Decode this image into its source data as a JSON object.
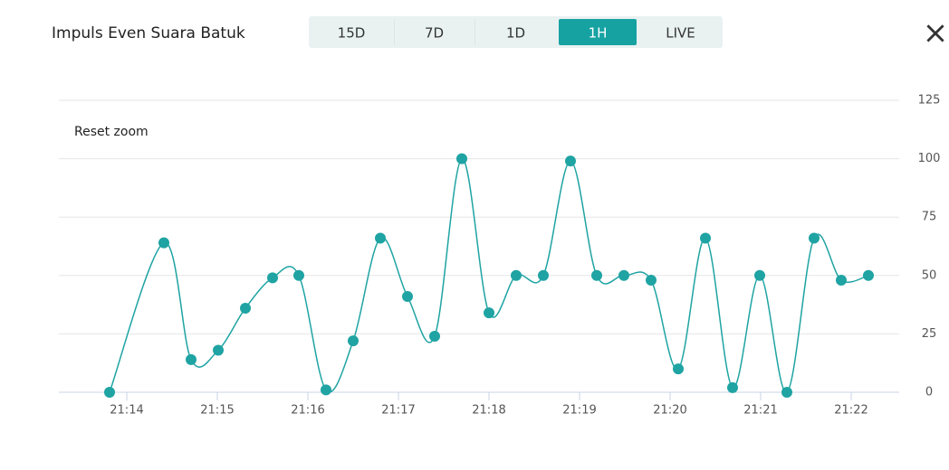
{
  "header": {
    "title": "Impuls Even Suara Batuk",
    "close": "×"
  },
  "tabs": {
    "items": [
      "15D",
      "7D",
      "1D",
      "1H",
      "LIVE"
    ],
    "active": 3
  },
  "reset_zoom": "Reset zoom",
  "chart_data": {
    "type": "line",
    "x": [
      13.81,
      14.41,
      14.71,
      15.01,
      15.31,
      15.61,
      15.9,
      16.2,
      16.5,
      16.8,
      17.1,
      17.4,
      17.7,
      18.0,
      18.3,
      18.6,
      18.9,
      19.19,
      19.49,
      19.79,
      20.09,
      20.39,
      20.69,
      20.99,
      21.29,
      21.59,
      21.89,
      22.19
    ],
    "series": [
      {
        "color": "#1fa3a3",
        "values": [
          0,
          64,
          14,
          18,
          36,
          49,
          50,
          1,
          22,
          66,
          41,
          24,
          100,
          34,
          50,
          50,
          99,
          50,
          50,
          48,
          10,
          66,
          2,
          50,
          0,
          66,
          48,
          50
        ]
      }
    ],
    "xlim": [
      13.25,
      22.53
    ],
    "xticks": [
      {
        "value": 14,
        "label": "21:14"
      },
      {
        "value": 15,
        "label": "21:15"
      },
      {
        "value": 16,
        "label": "21:16"
      },
      {
        "value": 17,
        "label": "21:17"
      },
      {
        "value": 18,
        "label": "21:18"
      },
      {
        "value": 19,
        "label": "21:19"
      },
      {
        "value": 20,
        "label": "21:20"
      },
      {
        "value": 21,
        "label": "21:21"
      },
      {
        "value": 22,
        "label": "21:22"
      }
    ],
    "ylim": [
      0,
      125
    ],
    "yticks": [
      0,
      25,
      50,
      75,
      100,
      125
    ],
    "grid": true
  }
}
